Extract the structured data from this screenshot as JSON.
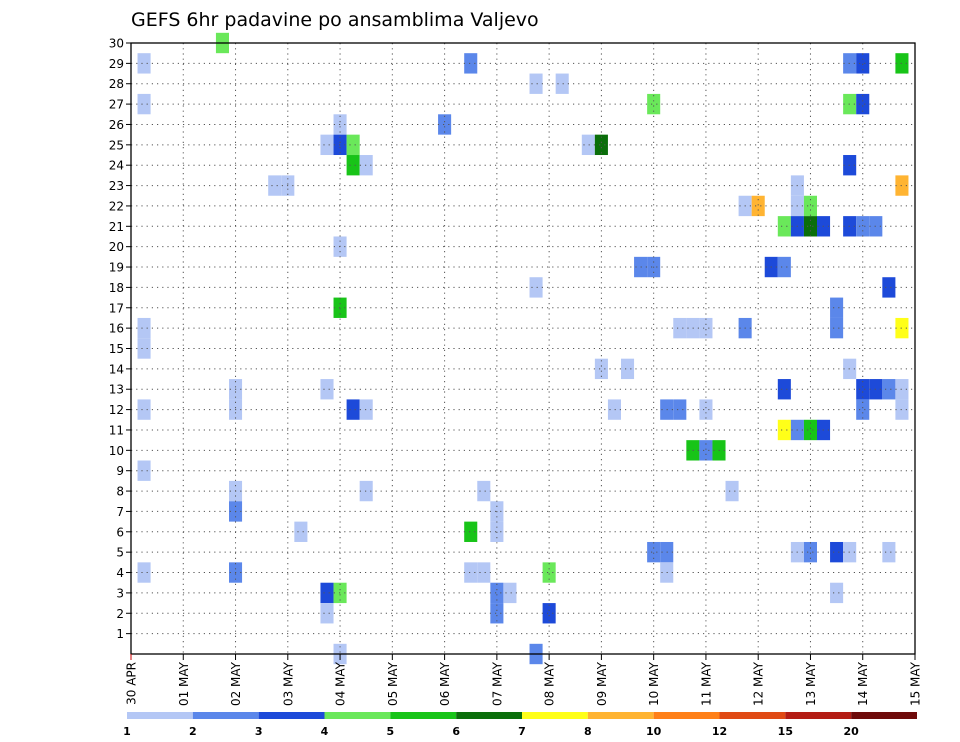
{
  "chart_data": {
    "type": "heatmap",
    "title": "GEFS 6hr padavine po ansamblima Valjevo",
    "xlabel": "",
    "ylabel": "",
    "x_tick_labels": [
      "30 APR",
      "01 MAY",
      "02 MAY",
      "03 MAY",
      "04 MAY",
      "05 MAY",
      "06 MAY",
      "07 MAY",
      "08 MAY",
      "09 MAY",
      "10 MAY",
      "11 MAY",
      "12 MAY",
      "13 MAY",
      "14 MAY",
      "15 MAY"
    ],
    "y_tick_labels": [
      1,
      2,
      3,
      4,
      5,
      6,
      7,
      8,
      9,
      10,
      11,
      12,
      13,
      14,
      15,
      16,
      17,
      18,
      19,
      20,
      21,
      22,
      23,
      24,
      25,
      26,
      27,
      28,
      29,
      30
    ],
    "x_unit": "6-hour steps from 30 APR 00Z",
    "x_range": [
      0,
      60
    ],
    "y_range": [
      0,
      30
    ],
    "grid": true,
    "colorbar": {
      "labels": [
        "1",
        "2",
        "3",
        "4",
        "5",
        "6",
        "7",
        "8",
        "10",
        "12",
        "15",
        "20"
      ],
      "colors": [
        "#b4c7f5",
        "#5b87ea",
        "#1d4ad9",
        "#6ae85a",
        "#18c418",
        "#0a6e0a",
        "#ffff18",
        "#ffb432",
        "#ff8018",
        "#e04a14",
        "#b41c14",
        "#6e0a0a"
      ]
    },
    "cells": [
      {
        "t": 1,
        "m": 29,
        "c": 0
      },
      {
        "t": 1,
        "m": 27,
        "c": 0
      },
      {
        "t": 1,
        "m": 16,
        "c": 0
      },
      {
        "t": 1,
        "m": 15,
        "c": 0
      },
      {
        "t": 1,
        "m": 12,
        "c": 0
      },
      {
        "t": 1,
        "m": 9,
        "c": 0
      },
      {
        "t": 1,
        "m": 4,
        "c": 0
      },
      {
        "t": 7,
        "m": 30,
        "c": 3
      },
      {
        "t": 8,
        "m": 13,
        "c": 0
      },
      {
        "t": 8,
        "m": 12,
        "c": 0
      },
      {
        "t": 8,
        "m": 8,
        "c": 0
      },
      {
        "t": 8,
        "m": 7,
        "c": 1
      },
      {
        "t": 8,
        "m": 4,
        "c": 1
      },
      {
        "t": 11,
        "m": 23,
        "c": 0
      },
      {
        "t": 12,
        "m": 23,
        "c": 0
      },
      {
        "t": 13,
        "m": 6,
        "c": 0
      },
      {
        "t": 15,
        "m": 25,
        "c": 0
      },
      {
        "t": 15,
        "m": 13,
        "c": 0
      },
      {
        "t": 15,
        "m": 3,
        "c": 2
      },
      {
        "t": 15,
        "m": 2,
        "c": 0
      },
      {
        "t": 16,
        "m": 26,
        "c": 0
      },
      {
        "t": 16,
        "m": 25,
        "c": 2
      },
      {
        "t": 16,
        "m": 20,
        "c": 0
      },
      {
        "t": 16,
        "m": 17,
        "c": 4
      },
      {
        "t": 16,
        "m": 3,
        "c": 3
      },
      {
        "t": 16,
        "m": 0,
        "c": 0
      },
      {
        "t": 17,
        "m": 25,
        "c": 3
      },
      {
        "t": 17,
        "m": 24,
        "c": 4
      },
      {
        "t": 17,
        "m": 12,
        "c": 2
      },
      {
        "t": 18,
        "m": 24,
        "c": 0
      },
      {
        "t": 18,
        "m": 12,
        "c": 0
      },
      {
        "t": 18,
        "m": 8,
        "c": 0
      },
      {
        "t": 24,
        "m": 26,
        "c": 1
      },
      {
        "t": 26,
        "m": 29,
        "c": 1
      },
      {
        "t": 26,
        "m": 6,
        "c": 4
      },
      {
        "t": 26,
        "m": 4,
        "c": 0
      },
      {
        "t": 27,
        "m": 8,
        "c": 0
      },
      {
        "t": 27,
        "m": 4,
        "c": 0
      },
      {
        "t": 28,
        "m": 7,
        "c": 0
      },
      {
        "t": 28,
        "m": 6,
        "c": 0
      },
      {
        "t": 28,
        "m": 3,
        "c": 1
      },
      {
        "t": 28,
        "m": 2,
        "c": 1
      },
      {
        "t": 29,
        "m": 3,
        "c": 0
      },
      {
        "t": 31,
        "m": 28,
        "c": 0
      },
      {
        "t": 31,
        "m": 18,
        "c": 0
      },
      {
        "t": 31,
        "m": 0,
        "c": 1
      },
      {
        "t": 32,
        "m": 4,
        "c": 3
      },
      {
        "t": 32,
        "m": 2,
        "c": 2
      },
      {
        "t": 33,
        "m": 28,
        "c": 0
      },
      {
        "t": 35,
        "m": 25,
        "c": 0
      },
      {
        "t": 36,
        "m": 25,
        "c": 5
      },
      {
        "t": 36,
        "m": 14,
        "c": 0
      },
      {
        "t": 37,
        "m": 12,
        "c": 0
      },
      {
        "t": 38,
        "m": 14,
        "c": 0
      },
      {
        "t": 39,
        "m": 19,
        "c": 1
      },
      {
        "t": 40,
        "m": 19,
        "c": 1
      },
      {
        "t": 40,
        "m": 27,
        "c": 3
      },
      {
        "t": 40,
        "m": 5,
        "c": 1
      },
      {
        "t": 41,
        "m": 5,
        "c": 1
      },
      {
        "t": 41,
        "m": 4,
        "c": 0
      },
      {
        "t": 41,
        "m": 12,
        "c": 1
      },
      {
        "t": 42,
        "m": 12,
        "c": 1
      },
      {
        "t": 42,
        "m": 16,
        "c": 0
      },
      {
        "t": 43,
        "m": 16,
        "c": 0
      },
      {
        "t": 44,
        "m": 16,
        "c": 0
      },
      {
        "t": 43,
        "m": 10,
        "c": 4
      },
      {
        "t": 44,
        "m": 10,
        "c": 1
      },
      {
        "t": 45,
        "m": 10,
        "c": 4
      },
      {
        "t": 44,
        "m": 12,
        "c": 0
      },
      {
        "t": 46,
        "m": 8,
        "c": 0
      },
      {
        "t": 47,
        "m": 22,
        "c": 0
      },
      {
        "t": 48,
        "m": 22,
        "c": 7
      },
      {
        "t": 47,
        "m": 16,
        "c": 1
      },
      {
        "t": 49,
        "m": 19,
        "c": 2
      },
      {
        "t": 50,
        "m": 19,
        "c": 1
      },
      {
        "t": 50,
        "m": 21,
        "c": 3
      },
      {
        "t": 50,
        "m": 13,
        "c": 2
      },
      {
        "t": 50,
        "m": 11,
        "c": 6
      },
      {
        "t": 51,
        "m": 23,
        "c": 0
      },
      {
        "t": 51,
        "m": 22,
        "c": 0
      },
      {
        "t": 51,
        "m": 21,
        "c": 2
      },
      {
        "t": 51,
        "m": 11,
        "c": 1
      },
      {
        "t": 51,
        "m": 5,
        "c": 0
      },
      {
        "t": 52,
        "m": 22,
        "c": 3
      },
      {
        "t": 52,
        "m": 21,
        "c": 5
      },
      {
        "t": 52,
        "m": 11,
        "c": 4
      },
      {
        "t": 52,
        "m": 5,
        "c": 1
      },
      {
        "t": 53,
        "m": 21,
        "c": 2
      },
      {
        "t": 53,
        "m": 11,
        "c": 2
      },
      {
        "t": 54,
        "m": 17,
        "c": 1
      },
      {
        "t": 54,
        "m": 16,
        "c": 1
      },
      {
        "t": 54,
        "m": 5,
        "c": 2
      },
      {
        "t": 54,
        "m": 3,
        "c": 0
      },
      {
        "t": 55,
        "m": 29,
        "c": 1
      },
      {
        "t": 55,
        "m": 27,
        "c": 3
      },
      {
        "t": 55,
        "m": 24,
        "c": 2
      },
      {
        "t": 55,
        "m": 21,
        "c": 2
      },
      {
        "t": 55,
        "m": 14,
        "c": 0
      },
      {
        "t": 55,
        "m": 5,
        "c": 0
      },
      {
        "t": 56,
        "m": 29,
        "c": 2
      },
      {
        "t": 56,
        "m": 27,
        "c": 2
      },
      {
        "t": 56,
        "m": 21,
        "c": 1
      },
      {
        "t": 56,
        "m": 13,
        "c": 2
      },
      {
        "t": 56,
        "m": 12,
        "c": 1
      },
      {
        "t": 57,
        "m": 21,
        "c": 1
      },
      {
        "t": 57,
        "m": 13,
        "c": 2
      },
      {
        "t": 58,
        "m": 18,
        "c": 2
      },
      {
        "t": 58,
        "m": 13,
        "c": 1
      },
      {
        "t": 58,
        "m": 5,
        "c": 0
      },
      {
        "t": 59,
        "m": 29,
        "c": 4
      },
      {
        "t": 59,
        "m": 23,
        "c": 7
      },
      {
        "t": 59,
        "m": 16,
        "c": 6
      },
      {
        "t": 59,
        "m": 13,
        "c": 0
      },
      {
        "t": 59,
        "m": 12,
        "c": 0
      }
    ]
  }
}
